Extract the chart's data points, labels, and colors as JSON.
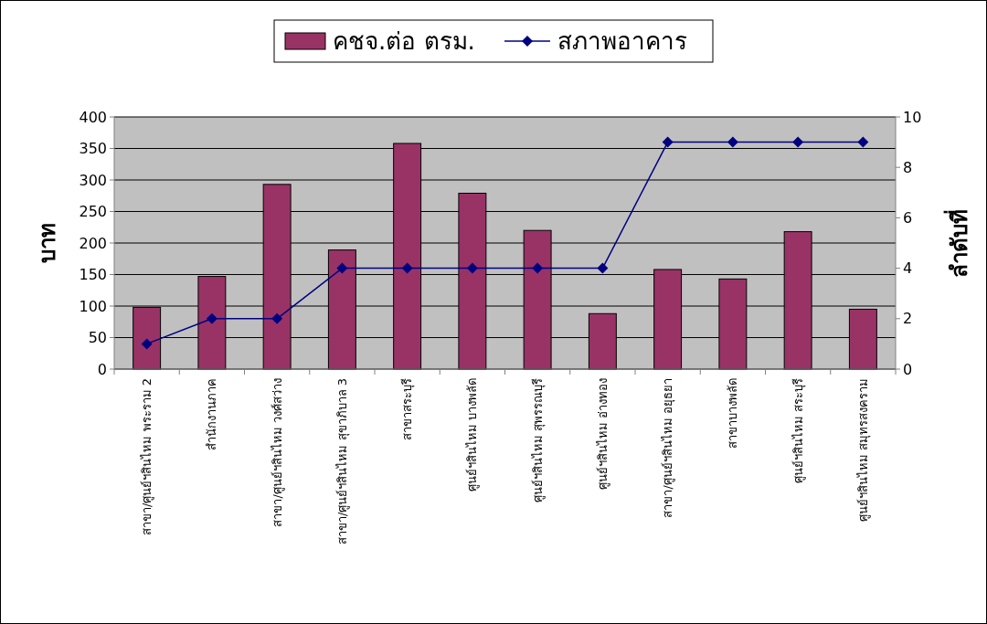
{
  "chart_data": {
    "type": "bar",
    "categories": [
      "สาขา/ศูนย์ฯสินไหม พระราม 2",
      "สำนักงานภาค",
      "สาขา/ศูนย์ฯสินไหม วงศ์สว่าง",
      "สาขา/ศูนย์ฯสินไหม สุขาภิบาล 3",
      "สาขาสระบุรี",
      "ศูนย์ฯสินไหม บางพลัด",
      "ศูนย์ฯสินไหม สุพรรณบุรี",
      "ศูนย์ฯสินไหม อ่างทอง",
      "สาขา/ศูนย์ฯสินไหม อยุธยา",
      "สาขาบางพลัด",
      "ศูนย์ฯสินไหม สระบุรี",
      "ศูนย์ฯสินไหม สมุทรสงคราม"
    ],
    "series": [
      {
        "name": "คชจ.ต่อ ตรม.",
        "color": "#993366",
        "values": [
          98,
          147,
          293,
          189,
          358,
          279,
          220,
          88,
          158,
          143,
          218,
          95
        ]
      },
      {
        "name": "สภาพอาคาร",
        "type": "line",
        "axis": "y2",
        "color": "#000080",
        "marker": "diamond",
        "values": [
          1,
          2,
          2,
          4,
          4,
          4,
          4,
          4,
          9,
          9,
          9,
          9
        ]
      }
    ],
    "ylabel": "บาท",
    "y2label": "ลำดับที่",
    "ylim": [
      0,
      400
    ],
    "yticks": [
      0,
      50,
      100,
      150,
      200,
      250,
      300,
      350,
      400
    ],
    "y2lim": [
      0,
      10
    ],
    "y2ticks": [
      0,
      2,
      4,
      6,
      8,
      10
    ],
    "grid": "y",
    "legend": "top"
  }
}
